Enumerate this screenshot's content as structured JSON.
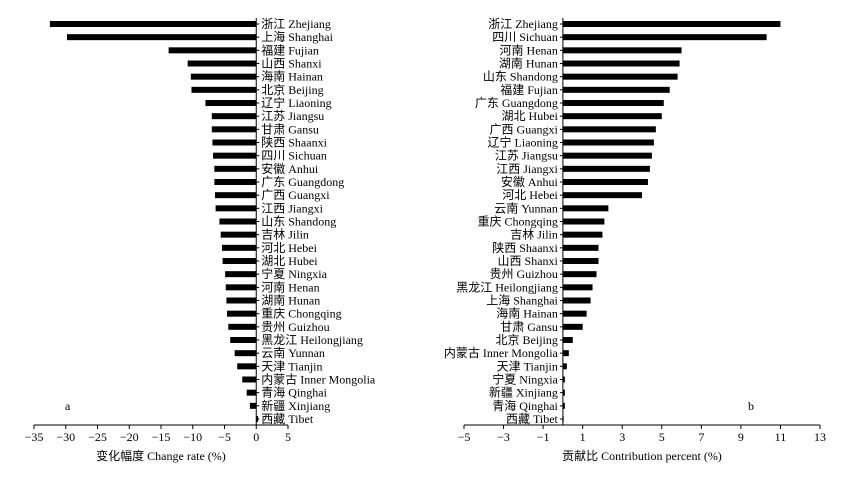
{
  "chart_data": [
    {
      "type": "bar",
      "orientation": "horizontal",
      "panel_label": "a",
      "xlabel": "变化幅度 Change rate (%)",
      "xlim": [
        -35,
        5
      ],
      "xticks": [
        -35,
        -30,
        -25,
        -20,
        -15,
        -10,
        -5,
        0,
        5
      ],
      "categories": [
        "浙江 Zhejiang",
        "上海 Shanghai",
        "福建 Fujian",
        "山西 Shanxi",
        "海南 Hainan",
        "北京 Beijing",
        "辽宁 Liaoning",
        "江苏 Jiangsu",
        "甘肃 Gansu",
        "陕西 Shaanxi",
        "四川 Sichuan",
        "安徽 Anhui",
        "广东 Guangdong",
        "广西 Guangxi",
        "江西 Jiangxi",
        "山东 Shandong",
        "吉林 Jilin",
        "河北 Hebei",
        "湖北 Hubei",
        "宁夏 Ningxia",
        "河南 Henan",
        "湖南 Hunan",
        "重庆 Chongqing",
        "贵州 Guizhou",
        "黑龙江 Heilongjiang",
        "云南 Yunnan",
        "天津 Tianjin",
        "内蒙古 Inner Mongolia",
        "青海 Qinghai",
        "新疆 Xinjiang",
        "西藏 Tibet"
      ],
      "values": [
        -32.5,
        -29.8,
        -13.8,
        -10.8,
        -10.3,
        -10.2,
        -8.0,
        -7.0,
        -7.0,
        -6.9,
        -6.8,
        -6.6,
        -6.6,
        -6.5,
        -6.4,
        -5.8,
        -5.6,
        -5.4,
        -5.3,
        -4.9,
        -4.8,
        -4.7,
        -4.6,
        -4.4,
        -4.1,
        -3.4,
        -3.0,
        -2.2,
        -1.5,
        -1.0,
        0.3
      ],
      "bar_color": "#000000"
    },
    {
      "type": "bar",
      "orientation": "horizontal",
      "panel_label": "b",
      "xlabel": "贡献比 Contribution percent (%)",
      "xlim": [
        -5,
        13
      ],
      "xticks": [
        -5,
        -3,
        -1,
        1,
        3,
        5,
        7,
        9,
        11,
        13
      ],
      "categories": [
        "浙江 Zhejiang",
        "四川 Sichuan",
        "河南 Henan",
        "湖南 Hunan",
        "山东 Shandong",
        "福建 Fujian",
        "广东 Guangdong",
        "湖北 Hubei",
        "广西 Guangxi",
        "辽宁 Liaoning",
        "江苏 Jiangsu",
        "江西 Jiangxi",
        "安徽 Anhui",
        "河北 Hebei",
        "云南 Yunnan",
        "重庆 Chongqing",
        "吉林 Jilin",
        "陕西 Shaanxi",
        "山西 Shanxi",
        "贵州 Guizhou",
        "黑龙江 Heilongjiang",
        "上海 Shanghai",
        "海南 Hainan",
        "甘肃 Gansu",
        "北京 Beijing",
        "内蒙古 Inner Mongolia",
        "天津 Tianjin",
        "宁夏 Ningxia",
        "新疆 Xinjiang",
        "青海 Qinghai",
        "西藏 Tibet"
      ],
      "values": [
        11.0,
        10.3,
        6.0,
        5.9,
        5.8,
        5.4,
        5.1,
        5.0,
        4.7,
        4.6,
        4.5,
        4.4,
        4.3,
        4.0,
        2.3,
        2.1,
        2.0,
        1.8,
        1.8,
        1.7,
        1.5,
        1.4,
        1.2,
        1.0,
        0.5,
        0.3,
        0.2,
        0.1,
        0.1,
        0.1,
        0.0
      ],
      "bar_color": "#000000"
    }
  ]
}
